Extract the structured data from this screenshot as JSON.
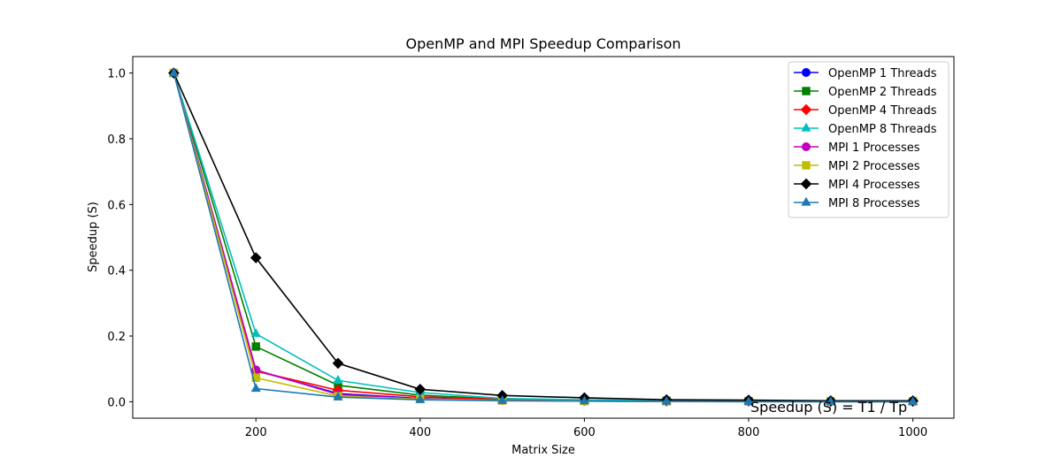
{
  "chart_data": {
    "type": "line",
    "title": "OpenMP and MPI Speedup Comparison",
    "xlabel": "Matrix Size",
    "ylabel": "Speedup (S)",
    "xlim": [
      50,
      1050
    ],
    "ylim": [
      -0.05,
      1.05
    ],
    "xticks": [
      200,
      400,
      600,
      800,
      1000
    ],
    "xtick_labels": [
      "200",
      "400",
      "600",
      "800",
      "1000"
    ],
    "yticks": [
      0.0,
      0.2,
      0.4,
      0.6,
      0.8,
      1.0
    ],
    "ytick_labels": [
      "0.0",
      "0.2",
      "0.4",
      "0.6",
      "0.8",
      "1.0"
    ],
    "grid": false,
    "legend_position": "top-right",
    "annotation": "Speedup (S) = T1 / Tp",
    "x": [
      100,
      200,
      300,
      400,
      500,
      600,
      700,
      800,
      900,
      1000
    ],
    "series": [
      {
        "name": "OpenMP 1 Threads",
        "color": "#0000ff",
        "marker": "circle",
        "values": [
          1.0,
          0.095,
          0.025,
          0.01,
          0.005,
          0.003,
          0.002,
          0.001,
          0.001,
          0.001
        ]
      },
      {
        "name": "OpenMP 2 Threads",
        "color": "#008000",
        "marker": "square",
        "values": [
          1.0,
          0.168,
          0.05,
          0.02,
          0.008,
          0.005,
          0.003,
          0.002,
          0.001,
          0.001
        ]
      },
      {
        "name": "OpenMP 4 Threads",
        "color": "#ff0000",
        "marker": "diamond",
        "values": [
          1.0,
          0.093,
          0.035,
          0.015,
          0.007,
          0.004,
          0.002,
          0.002,
          0.001,
          0.001
        ]
      },
      {
        "name": "OpenMP 8 Threads",
        "color": "#00bfbf",
        "marker": "triangle",
        "values": [
          1.0,
          0.207,
          0.065,
          0.028,
          0.01,
          0.006,
          0.003,
          0.002,
          0.001,
          0.001
        ]
      },
      {
        "name": "MPI 1 Processes",
        "color": "#bf00bf",
        "marker": "circle",
        "values": [
          1.0,
          0.097,
          0.022,
          0.009,
          0.004,
          0.002,
          0.001,
          0.001,
          0.001,
          0.0
        ]
      },
      {
        "name": "MPI 2 Processes",
        "color": "#bfbf00",
        "marker": "square",
        "values": [
          1.0,
          0.073,
          0.017,
          0.008,
          0.004,
          0.002,
          0.001,
          0.001,
          0.0,
          0.0
        ]
      },
      {
        "name": "MPI 4 Processes",
        "color": "#000000",
        "marker": "diamond",
        "values": [
          1.0,
          0.438,
          0.117,
          0.038,
          0.019,
          0.012,
          0.006,
          0.005,
          0.003,
          0.003
        ]
      },
      {
        "name": "MPI 8 Processes",
        "color": "#1f77b4",
        "marker": "triangle",
        "values": [
          1.0,
          0.04,
          0.014,
          0.006,
          0.003,
          0.002,
          0.001,
          0.0,
          0.0,
          0.0
        ]
      }
    ]
  }
}
